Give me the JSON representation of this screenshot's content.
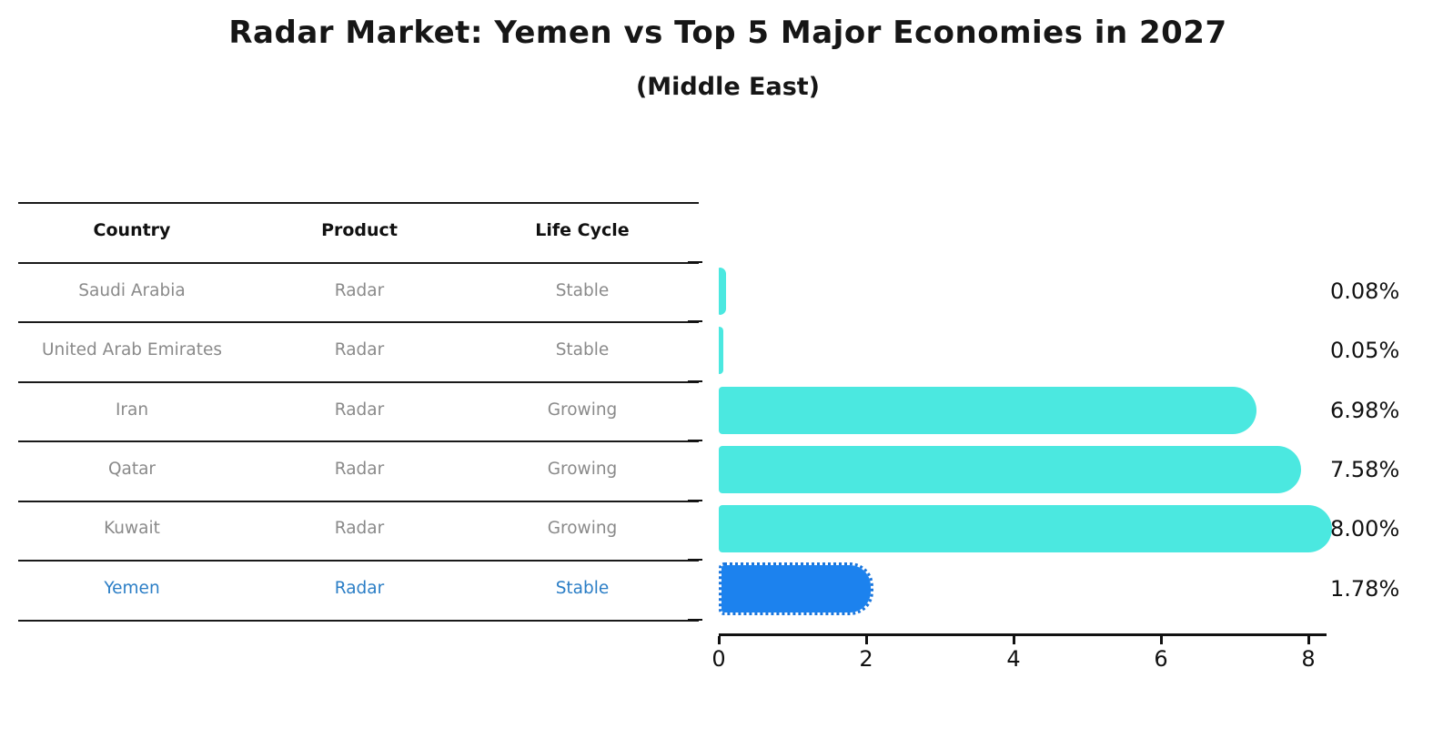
{
  "title": "Radar Market: Yemen vs Top 5 Major Economies in 2027",
  "subtitle": "(Middle East)",
  "table": {
    "headers": [
      "Country",
      "Product",
      "Life Cycle"
    ],
    "rows": [
      {
        "country": "Saudi Arabia",
        "product": "Radar",
        "life_cycle": "Stable",
        "highlight": false
      },
      {
        "country": "United Arab Emirates",
        "product": "Radar",
        "life_cycle": "Stable",
        "highlight": false
      },
      {
        "country": "Iran",
        "product": "Radar",
        "life_cycle": "Growing",
        "highlight": false
      },
      {
        "country": "Qatar",
        "product": "Radar",
        "life_cycle": "Growing",
        "highlight": false
      },
      {
        "country": "Kuwait",
        "product": "Radar",
        "life_cycle": "Growing",
        "highlight": false
      },
      {
        "country": "Yemen",
        "product": "Radar",
        "life_cycle": "Stable",
        "highlight": true
      }
    ]
  },
  "chart_data": {
    "type": "bar",
    "orientation": "horizontal",
    "title": "Radar Market: Yemen vs Top 5 Major Economies in 2027",
    "subtitle": "(Middle East)",
    "categories": [
      "Saudi Arabia",
      "United Arab Emirates",
      "Iran",
      "Qatar",
      "Kuwait",
      "Yemen"
    ],
    "values": [
      0.08,
      0.05,
      6.98,
      7.58,
      8.0,
      1.78
    ],
    "value_labels": [
      "0.08%",
      "0.05%",
      "6.98%",
      "7.58%",
      "8.00%",
      "1.78%"
    ],
    "highlight_category": "Yemen",
    "xlabel": "",
    "ylabel": "",
    "xlim": [
      0,
      8.25
    ],
    "x_ticks": [
      0,
      2,
      4,
      6,
      8
    ],
    "grid": false,
    "legend": "none",
    "colors": {
      "bar": "#4be8e0",
      "highlight_bar": "#1c82ee",
      "highlight_text": "#2b7ec6",
      "row_text": "#8a8a8a",
      "header_text": "#111111",
      "axis": "#111111"
    }
  }
}
